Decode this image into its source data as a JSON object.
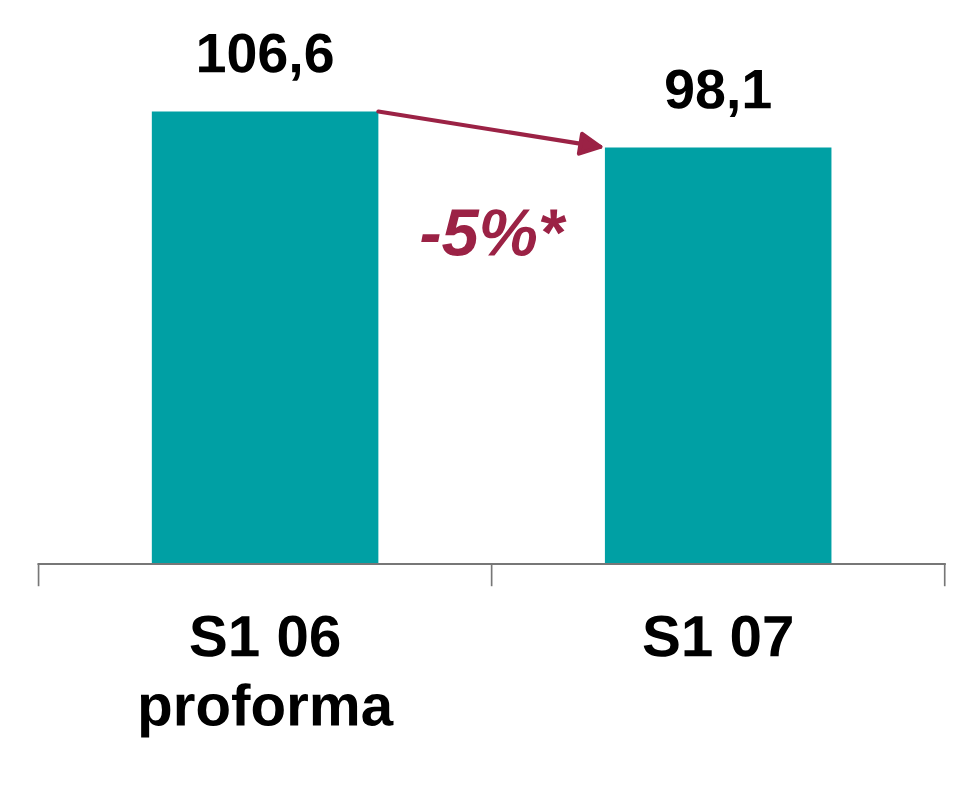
{
  "chart_data": {
    "type": "bar",
    "categories": [
      "S1 06\nproforma",
      "S1 07"
    ],
    "values": [
      106.6,
      98.1
    ],
    "value_labels": [
      "106,6",
      "98,1"
    ],
    "color": "#00a0a4",
    "grid": false,
    "legend": false,
    "annotations": [
      "-5%*"
    ]
  }
}
